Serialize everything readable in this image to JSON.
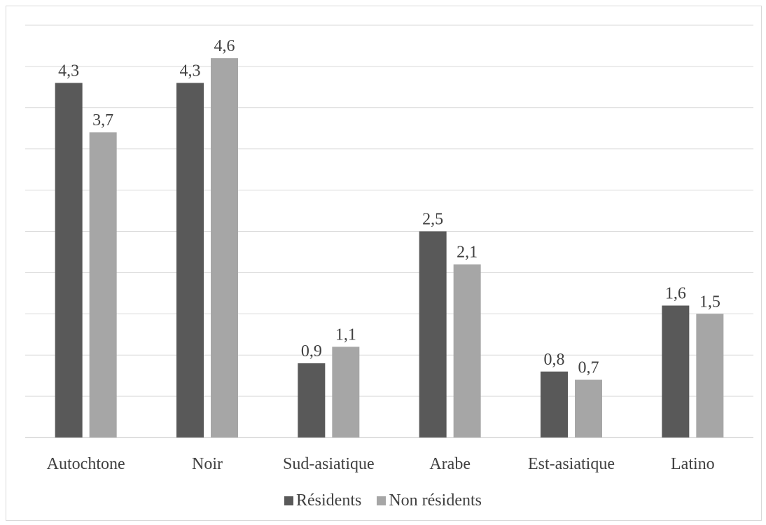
{
  "chart_data": {
    "type": "bar",
    "categories": [
      "Autochtone",
      "Noir",
      "Sud-asiatique",
      "Arabe",
      "Est-asiatique",
      "Latino"
    ],
    "series": [
      {
        "name": "Résidents",
        "values": [
          4.3,
          4.3,
          0.9,
          2.5,
          0.8,
          1.6
        ],
        "labels": [
          "4,3",
          "4,3",
          "0,9",
          "2,5",
          "0,8",
          "1,6"
        ],
        "color": "#595959"
      },
      {
        "name": "Non résidents",
        "values": [
          3.7,
          4.6,
          1.1,
          2.1,
          0.7,
          1.5
        ],
        "labels": [
          "3,7",
          "4,6",
          "1,1",
          "2,1",
          "0,7",
          "1,5"
        ],
        "color": "#a6a6a6"
      }
    ],
    "title": "",
    "xlabel": "",
    "ylabel": "",
    "ylim": [
      0,
      5
    ],
    "grid": true,
    "legend": "bottom"
  }
}
